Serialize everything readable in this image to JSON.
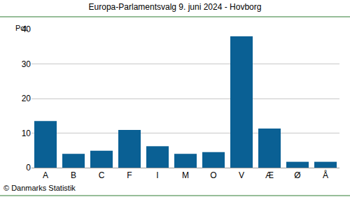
{
  "chart_data": {
    "type": "bar",
    "title": "Europa-Parlamentsvalg 9. juni 2024 - Hovborg",
    "y_label": "Pct.",
    "source": "© Danmarks Statistik",
    "categories": [
      "A",
      "B",
      "C",
      "F",
      "I",
      "M",
      "O",
      "V",
      "Æ",
      "Ø",
      "Å"
    ],
    "values": [
      13.5,
      4.0,
      4.9,
      10.9,
      6.2,
      4.0,
      4.5,
      38.0,
      11.3,
      1.7,
      1.7
    ],
    "color": "#0a6094",
    "ylim": [
      0,
      40
    ],
    "yticks": [
      0,
      10,
      20,
      30,
      40
    ],
    "grid": true
  }
}
